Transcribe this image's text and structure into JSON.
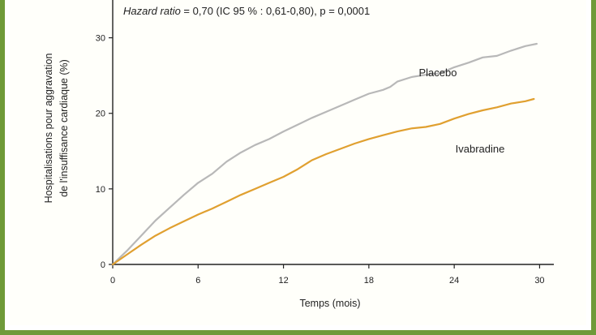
{
  "chart_data": {
    "type": "line",
    "annotation": {
      "italic_part": "Hazard ratio",
      "rest": " = 0,70 (IC 95 % : 0,61-0,80), p = 0,0001"
    },
    "xlabel": "Temps (mois)",
    "ylabel_lines": [
      "Hospitalisations pour aggravation",
      "de l'insuffisance cardiaque (%)"
    ],
    "xlim": [
      0,
      31
    ],
    "ylim": [
      0,
      35
    ],
    "xticks": [
      0,
      6,
      12,
      18,
      24,
      30
    ],
    "xtick_labels": [
      "0",
      "6",
      "12",
      "18",
      "24",
      "30"
    ],
    "yticks": [
      0,
      10,
      20,
      30
    ],
    "ytick_labels": [
      "0",
      "10",
      "20",
      "30"
    ],
    "series": [
      {
        "name": "Placebo",
        "color": "#b8b8b8",
        "x": [
          0,
          1,
          2,
          3,
          4,
          5,
          6,
          7,
          8,
          9,
          10,
          11,
          12,
          13,
          14,
          15,
          16,
          17,
          18,
          19,
          19.5,
          20,
          21,
          22,
          23,
          24,
          25,
          26,
          27,
          28,
          29,
          29.8
        ],
        "y": [
          0,
          1.8,
          3.8,
          5.8,
          7.5,
          9.2,
          10.8,
          12.0,
          13.6,
          14.8,
          15.8,
          16.6,
          17.6,
          18.5,
          19.4,
          20.2,
          21.0,
          21.8,
          22.6,
          23.1,
          23.5,
          24.2,
          24.8,
          25.1,
          25.3,
          26.1,
          26.7,
          27.4,
          27.6,
          28.3,
          28.9,
          29.2
        ]
      },
      {
        "name": "Ivabradine",
        "color": "#e0a030",
        "x": [
          0,
          1,
          2,
          3,
          4,
          5,
          6,
          7,
          8,
          9,
          10,
          11,
          12,
          13,
          14,
          15,
          16,
          17,
          18,
          19,
          20,
          21,
          22,
          23,
          24,
          25,
          26,
          27,
          28,
          29,
          29.6
        ],
        "y": [
          0,
          1.3,
          2.6,
          3.8,
          4.8,
          5.7,
          6.6,
          7.4,
          8.3,
          9.2,
          10.0,
          10.8,
          11.6,
          12.6,
          13.8,
          14.6,
          15.3,
          16.0,
          16.6,
          17.1,
          17.6,
          18.0,
          18.2,
          18.6,
          19.3,
          19.9,
          20.4,
          20.8,
          21.3,
          21.6,
          21.9
        ]
      }
    ]
  }
}
